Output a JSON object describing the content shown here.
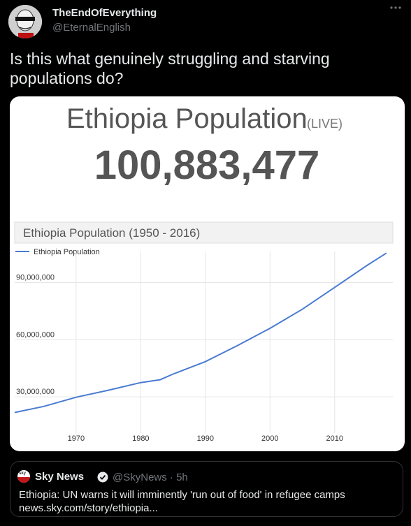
{
  "tweet": {
    "display_name": "TheEndOfEverything",
    "handle": "@EternalEnglish",
    "text": "Is this what genuinely struggling and starving populations do?",
    "more_icon": "more-horizontal-icon"
  },
  "media": {
    "title": "Ethiopia Population",
    "live_tag": "(LIVE)",
    "counter": "100,883,477",
    "chart_header": "Ethiopia Population (1950 - 2016)"
  },
  "chart_data": {
    "type": "line",
    "legend": "Ethiopia Population",
    "legend_position": "top-left",
    "grid": true,
    "xlim": [
      1960.5,
      2019
    ],
    "ylim": [
      11000000,
      110000000
    ],
    "x_ticks": [
      1970,
      1980,
      1990,
      2000,
      2010
    ],
    "x_tick_labels": [
      "1970",
      "1980",
      "1990",
      "2000",
      "2010"
    ],
    "y_ticks": [
      30000000,
      60000000,
      90000000
    ],
    "y_tick_labels": [
      "30,000,000",
      "60,000,000",
      "90,000,000"
    ],
    "series": [
      {
        "name": "Ethiopia Population",
        "color": "#4a7bd0",
        "x": [
          1960.5,
          1965,
          1970,
          1975,
          1980,
          1983,
          1985,
          1990,
          1995,
          2000,
          2005,
          2010,
          2015,
          2018
        ],
        "y": [
          21800000,
          25000000,
          29800000,
          33500000,
          37500000,
          39000000,
          42000000,
          48500000,
          57000000,
          66000000,
          76000000,
          87500000,
          99000000,
          105500000
        ]
      }
    ]
  },
  "quote": {
    "source_name": "Sky News",
    "source_handle": "@SkyNews",
    "time": "5h",
    "headline": "Ethiopia: UN warns it will imminently 'run out of food' in refugee camps",
    "link": "news.sky.com/story/ethiopia..."
  }
}
